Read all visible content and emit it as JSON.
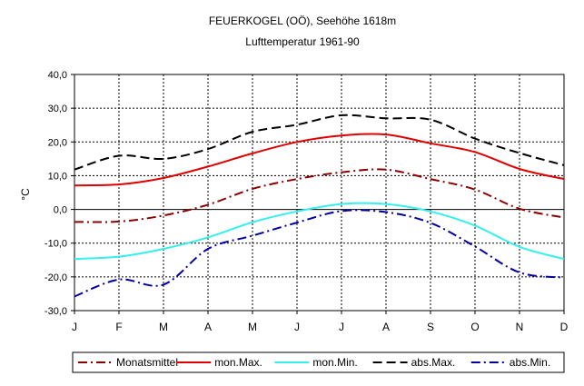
{
  "chart_data": {
    "type": "line",
    "title": "FEUERKOGEL (OÖ), Seehöhe 1618m",
    "subtitle": "Lufttemperatur 1961-90",
    "ylabel": "°C",
    "xlabel": "",
    "categories": [
      "J",
      "F",
      "M",
      "A",
      "M",
      "J",
      "J",
      "A",
      "S",
      "O",
      "N",
      "D"
    ],
    "ylim": [
      -30,
      40
    ],
    "ytick_step": 10,
    "ytick_labels": [
      "-30,0",
      "-20,0",
      "-10,0",
      "0,0",
      "10,0",
      "20,0",
      "30,0",
      "40,0"
    ],
    "grid": "dotted",
    "legend_position": "bottom",
    "series": [
      {
        "name": "Monatsmittel",
        "color": "#8B0000",
        "dash": "dash-dot",
        "values": [
          -3.7,
          -3.6,
          -1.8,
          1.4,
          6.1,
          9.0,
          11.0,
          11.8,
          9.0,
          5.9,
          0.2,
          -2.4
        ]
      },
      {
        "name": "mon.Max.",
        "color": "#E00000",
        "dash": "solid",
        "values": [
          7.1,
          7.4,
          9.3,
          12.7,
          16.6,
          20.0,
          21.9,
          22.2,
          19.6,
          17.0,
          12.0,
          9.0
        ]
      },
      {
        "name": "mon.Min.",
        "color": "#33F0F0",
        "dash": "solid",
        "values": [
          -14.7,
          -14.0,
          -11.7,
          -8.3,
          -3.8,
          -0.6,
          1.6,
          1.6,
          -0.6,
          -4.8,
          -11.1,
          -14.7
        ]
      },
      {
        "name": "abs.Max.",
        "color": "#000000",
        "dash": "dash",
        "values": [
          11.8,
          15.9,
          15.0,
          17.9,
          23.0,
          25.1,
          27.9,
          27.0,
          26.6,
          21.0,
          16.7,
          13.1
        ]
      },
      {
        "name": "abs.Min.",
        "color": "#0000A0",
        "dash": "dash-dot",
        "values": [
          -25.8,
          -20.8,
          -22.3,
          -11.7,
          -7.8,
          -3.9,
          -0.5,
          -0.8,
          -4.0,
          -11.0,
          -18.7,
          -20.2
        ]
      }
    ]
  }
}
